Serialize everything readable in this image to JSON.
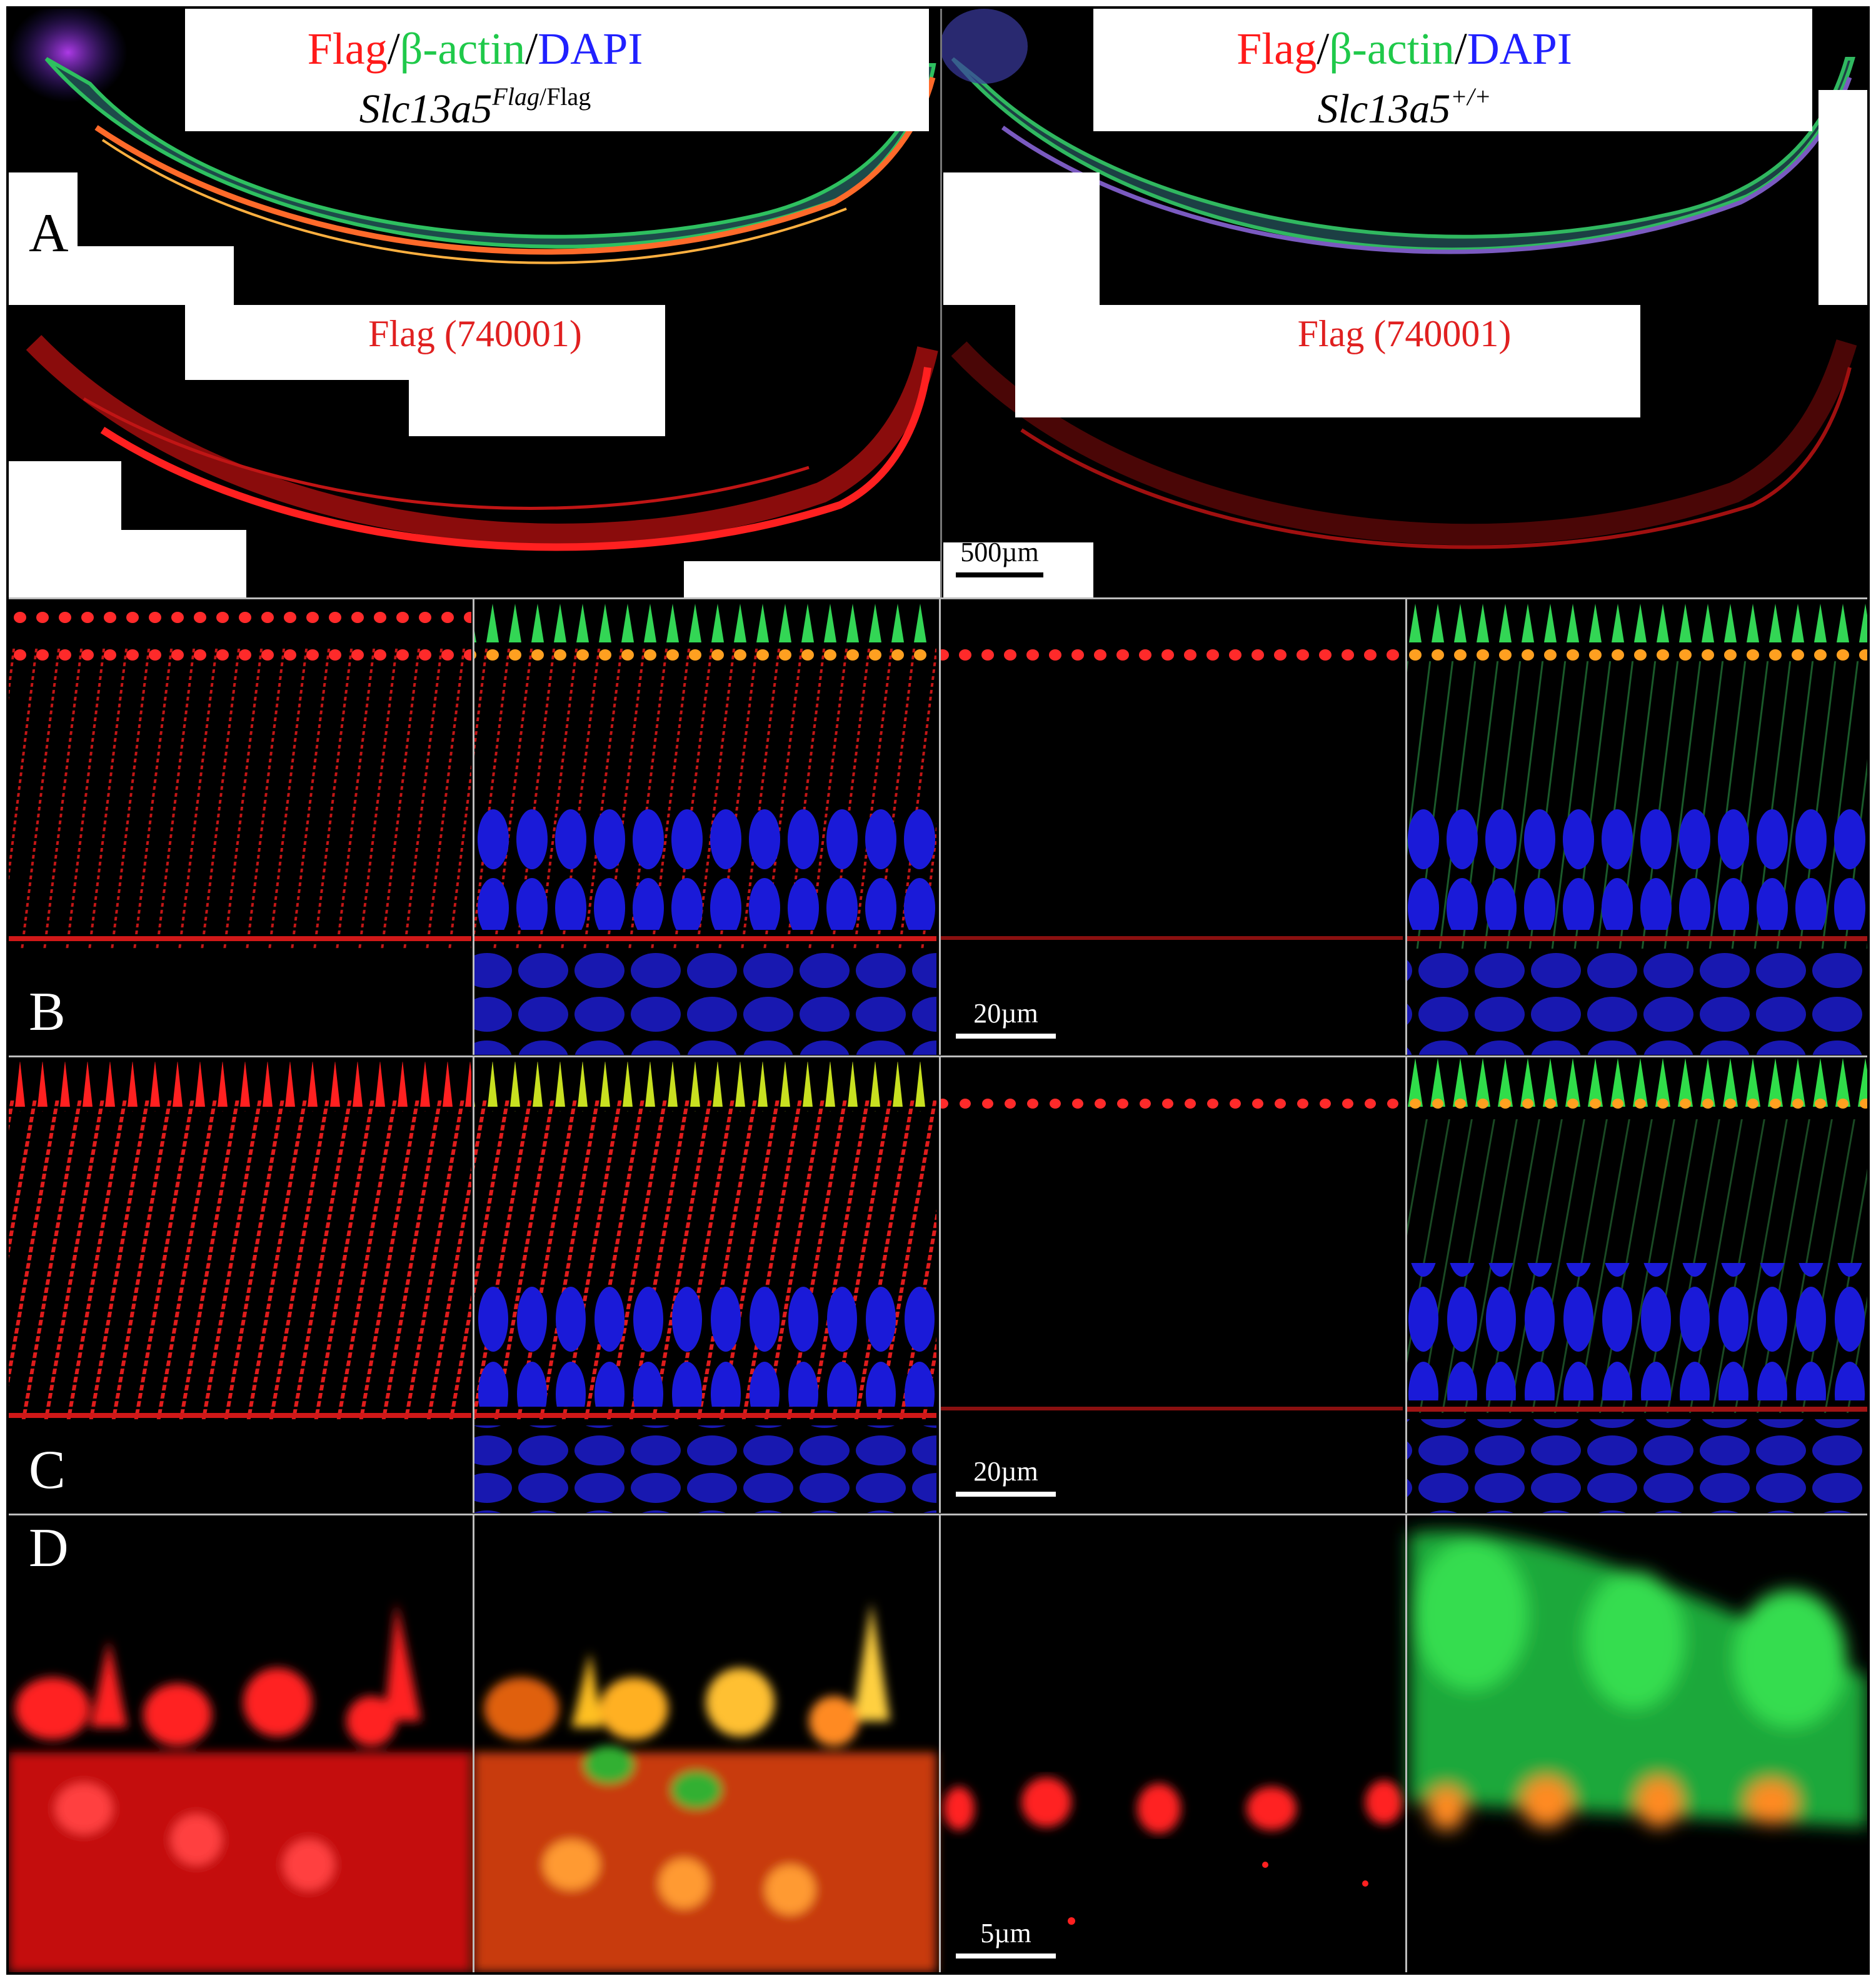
{
  "panel_a": {
    "letter": "A",
    "stain_labels": {
      "red": "Flag",
      "sep1": "/",
      "green": "β-actin",
      "sep2": "/",
      "blue": "DAPI"
    },
    "genotype_left": {
      "base": "Slc13a5",
      "sup_italic": "Flag",
      "sup_upright": "/Flag"
    },
    "genotype_right": {
      "base": "Slc13a5",
      "sup": "+/+"
    },
    "flag_label_left": "Flag (740001)",
    "flag_label_right": "Flag (740001)",
    "scale_bar": "500µm"
  },
  "panel_b": {
    "letter": "B",
    "scale_bar": "20µm"
  },
  "panel_c": {
    "letter": "C",
    "scale_bar": "20µm"
  },
  "panel_d": {
    "letter": "D",
    "scale_bar": "5µm"
  },
  "colors": {
    "red": "#ff1a1a",
    "green": "#1fc94a",
    "blue": "#2020ff",
    "background": "#000000",
    "divider": "#bdbdbd"
  }
}
